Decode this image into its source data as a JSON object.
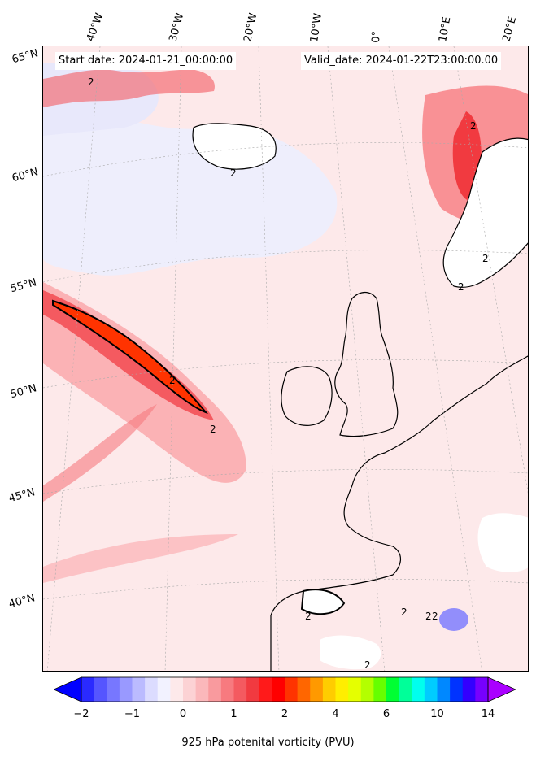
{
  "header": {
    "start_date": "Start date: 2024-01-21_00:00:00",
    "valid_date": "Valid_date: 2024-01-22T23:00:00.00"
  },
  "axes": {
    "longitude_labels": [
      "40°W",
      "30°W",
      "20°W",
      "10°W",
      "0°",
      "10°E",
      "20°E"
    ],
    "latitude_labels": [
      "65°N",
      "60°N",
      "55°N",
      "50°N",
      "45°N",
      "40°N"
    ]
  },
  "contour_labels": [
    "2",
    "2",
    "2",
    "2",
    "2",
    "2",
    "2",
    "2",
    "2",
    "2",
    "2",
    "2"
  ],
  "colorbar": {
    "label": "925 hPa potenital vorticity (PVU)",
    "tick_labels": [
      "−2",
      "−1",
      "0",
      "1",
      "2",
      "4",
      "6",
      "10",
      "14"
    ],
    "colors": [
      "#0000ff",
      "#2a2aff",
      "#5555ff",
      "#7777ff",
      "#9999ff",
      "#bbbbff",
      "#dcdcff",
      "#f2f2ff",
      "#fde9ea",
      "#fcd2d4",
      "#fbb8bb",
      "#f99a9e",
      "#f77a7f",
      "#f45a60",
      "#f13a40",
      "#ff1a1a",
      "#ff0000",
      "#ff3300",
      "#ff6600",
      "#ff9900",
      "#ffcc00",
      "#ffee00",
      "#e5ff00",
      "#b3ff00",
      "#66ff00",
      "#00ff33",
      "#00ff99",
      "#00ffee",
      "#00ccff",
      "#0088ff",
      "#0033ff",
      "#3300ff",
      "#7700ff",
      "#aa00ff"
    ],
    "extend": "both"
  }
}
